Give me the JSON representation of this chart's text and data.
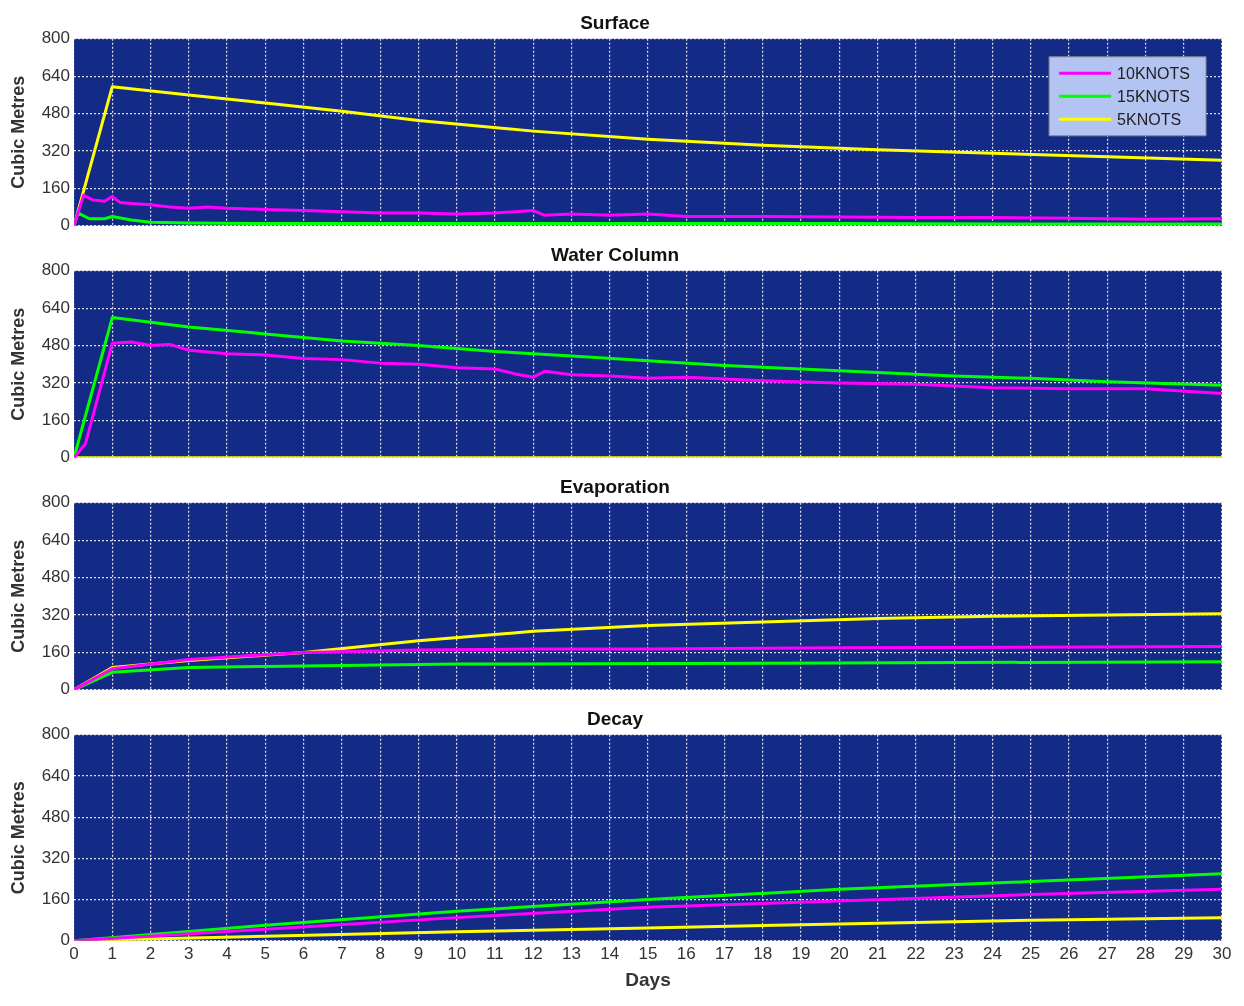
{
  "chart_data": [
    {
      "type": "line",
      "title": "Surface",
      "ylabel": "Cubic Metres",
      "xlim": [
        0,
        30
      ],
      "xticks": [
        0,
        1,
        2,
        3,
        4,
        5,
        6,
        7,
        8,
        9,
        10,
        11,
        12,
        13,
        14,
        15,
        16,
        17,
        18,
        19,
        20,
        21,
        22,
        23,
        24,
        25,
        26,
        27,
        28,
        29,
        30
      ],
      "ylim": [
        0,
        800
      ],
      "yticks": [
        0,
        160,
        320,
        480,
        640,
        800
      ],
      "grid": true,
      "legend": "top right",
      "tick_labels": "y",
      "series": [
        {
          "name": "10KNOTS",
          "color": "#ff00ff",
          "x": [
            0,
            0.25,
            0.5,
            0.8,
            1,
            1.2,
            1.5,
            2,
            2.5,
            3,
            3.5,
            4,
            5,
            6,
            7,
            8,
            9,
            10,
            11,
            12,
            12.3,
            13,
            14,
            15,
            16,
            18,
            20,
            22,
            24,
            26,
            28,
            30
          ],
          "values": [
            0,
            130,
            110,
            105,
            125,
            100,
            95,
            90,
            80,
            75,
            80,
            75,
            70,
            65,
            60,
            55,
            55,
            50,
            55,
            65,
            45,
            50,
            45,
            50,
            40,
            40,
            38,
            35,
            35,
            32,
            28,
            30
          ]
        },
        {
          "name": "15KNOTS",
          "color": "#00ff00",
          "x": [
            0,
            0.1,
            0.4,
            0.8,
            1,
            1.5,
            2,
            3,
            5,
            10,
            15,
            20,
            25,
            30
          ],
          "values": [
            0,
            55,
            30,
            30,
            40,
            25,
            15,
            12,
            10,
            10,
            10,
            10,
            8,
            8
          ]
        },
        {
          "name": "5KNOTS",
          "color": "#ffff00",
          "x": [
            0,
            1,
            3,
            5,
            7,
            9,
            12,
            15,
            18,
            21,
            24,
            27,
            30
          ],
          "values": [
            0,
            595,
            560,
            525,
            490,
            450,
            405,
            370,
            345,
            325,
            310,
            295,
            280
          ]
        }
      ]
    },
    {
      "type": "line",
      "title": "Water Column",
      "ylabel": "Cubic Metres",
      "xlim": [
        0,
        30
      ],
      "xticks": [
        0,
        1,
        2,
        3,
        4,
        5,
        6,
        7,
        8,
        9,
        10,
        11,
        12,
        13,
        14,
        15,
        16,
        17,
        18,
        19,
        20,
        21,
        22,
        23,
        24,
        25,
        26,
        27,
        28,
        29,
        30
      ],
      "ylim": [
        0,
        800
      ],
      "yticks": [
        0,
        160,
        320,
        480,
        640,
        800
      ],
      "grid": true,
      "tick_labels": "y",
      "series": [
        {
          "color": "#ff00ff",
          "x": [
            0,
            0.3,
            1,
            1.5,
            2,
            2.5,
            3,
            4,
            5,
            6,
            7,
            8,
            9,
            10,
            11,
            11.5,
            12,
            12.3,
            13,
            14,
            15,
            16,
            18,
            20,
            22,
            24,
            26,
            28,
            30
          ],
          "values": [
            0,
            60,
            490,
            495,
            480,
            485,
            460,
            445,
            440,
            425,
            420,
            405,
            400,
            385,
            380,
            360,
            345,
            370,
            355,
            350,
            340,
            345,
            330,
            320,
            315,
            300,
            295,
            295,
            275
          ]
        },
        {
          "color": "#00ff00",
          "x": [
            0,
            1,
            3,
            5,
            7,
            9,
            11,
            13,
            15,
            17,
            19,
            21,
            23,
            25,
            27,
            30
          ],
          "values": [
            0,
            600,
            560,
            530,
            500,
            480,
            455,
            435,
            415,
            395,
            380,
            365,
            350,
            340,
            325,
            310
          ]
        },
        {
          "color": "#ffff00",
          "x": [
            0,
            30
          ],
          "values": [
            0,
            0
          ]
        }
      ]
    },
    {
      "type": "line",
      "title": "Evaporation",
      "ylabel": "Cubic Metres",
      "xlim": [
        0,
        30
      ],
      "xticks": [
        0,
        1,
        2,
        3,
        4,
        5,
        6,
        7,
        8,
        9,
        10,
        11,
        12,
        13,
        14,
        15,
        16,
        17,
        18,
        19,
        20,
        21,
        22,
        23,
        24,
        25,
        26,
        27,
        28,
        29,
        30
      ],
      "ylim": [
        0,
        800
      ],
      "yticks": [
        0,
        160,
        320,
        480,
        640,
        800
      ],
      "grid": true,
      "tick_labels": "y",
      "series": [
        {
          "color": "#ff00ff",
          "x": [
            0,
            1,
            3,
            6,
            9,
            12,
            15,
            20,
            25,
            30
          ],
          "values": [
            0,
            90,
            130,
            160,
            170,
            175,
            175,
            180,
            182,
            185
          ]
        },
        {
          "color": "#00ff00",
          "x": [
            0,
            1,
            3,
            5,
            10,
            20,
            30
          ],
          "values": [
            0,
            75,
            95,
            100,
            110,
            115,
            120
          ]
        },
        {
          "color": "#ffff00",
          "x": [
            0,
            1,
            3,
            6,
            9,
            12,
            15,
            18,
            21,
            24,
            27,
            30
          ],
          "values": [
            0,
            95,
            125,
            160,
            210,
            250,
            275,
            290,
            305,
            315,
            320,
            325
          ]
        }
      ]
    },
    {
      "type": "line",
      "title": "Decay",
      "ylabel": "Cubic Metres",
      "xlabel": "Days",
      "xlim": [
        0,
        30
      ],
      "xticks": [
        0,
        1,
        2,
        3,
        4,
        5,
        6,
        7,
        8,
        9,
        10,
        11,
        12,
        13,
        14,
        15,
        16,
        17,
        18,
        19,
        20,
        21,
        22,
        23,
        24,
        25,
        26,
        27,
        28,
        29,
        30
      ],
      "ylim": [
        0,
        800
      ],
      "yticks": [
        0,
        160,
        320,
        480,
        640,
        800
      ],
      "grid": true,
      "series": [
        {
          "color": "#ff00ff",
          "x": [
            0,
            5,
            10,
            15,
            20,
            25,
            30
          ],
          "values": [
            0,
            45,
            90,
            130,
            155,
            180,
            200
          ]
        },
        {
          "color": "#00ff00",
          "x": [
            0,
            5,
            10,
            15,
            20,
            25,
            30
          ],
          "values": [
            0,
            60,
            115,
            160,
            200,
            230,
            260
          ]
        },
        {
          "color": "#ffff00",
          "x": [
            0,
            5,
            10,
            15,
            20,
            25,
            30
          ],
          "values": [
            0,
            18,
            35,
            50,
            65,
            80,
            90
          ]
        }
      ]
    }
  ]
}
